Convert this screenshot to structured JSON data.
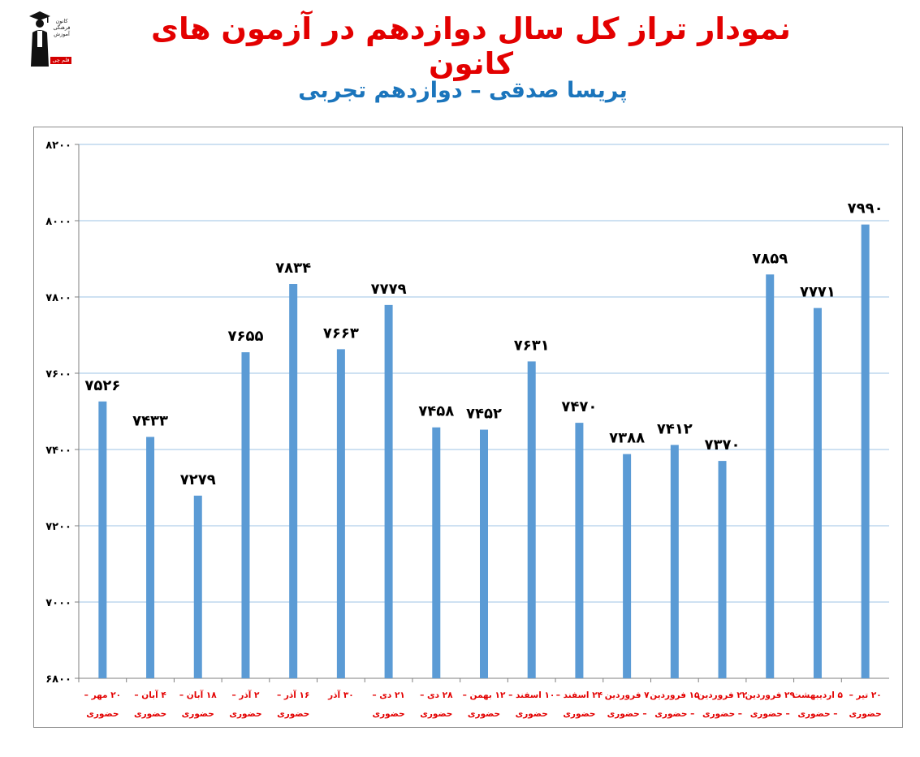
{
  "title": "نمودار تراز کل سال دوازدهم در آزمون های کانون",
  "subtitle": "پریسا صدقی – دوازدهم تجربی",
  "logo": {
    "caption_lines": [
      "کانون",
      "فرهنگی",
      "آموزش"
    ],
    "badge": "قلم چی"
  },
  "colors": {
    "title": "#e30000",
    "subtitle": "#1b75bc",
    "bar": "#5b9bd5",
    "category_label": "#e30000",
    "gridline": "#9dc3e6"
  },
  "chart_data": {
    "type": "bar",
    "title": "نمودار تراز کل سال دوازدهم در آزمون های کانون",
    "subtitle": "پریسا صدقی – دوازدهم تجربی",
    "ylim": [
      6800,
      8200
    ],
    "yticks": [
      6800,
      7000,
      7200,
      7400,
      7600,
      7800,
      8000,
      8200
    ],
    "ytick_labels": [
      "۶۸۰۰",
      "۷۰۰۰",
      "۷۲۰۰",
      "۷۴۰۰",
      "۷۶۰۰",
      "۷۸۰۰",
      "۸۰۰۰",
      "۸۲۰۰"
    ],
    "grid": true,
    "legend": false,
    "categories": [
      [
        "۲۰ مهر –",
        "حضوری"
      ],
      [
        "۴ آبان –",
        "حضوری"
      ],
      [
        "۱۸ آبان –",
        "حضوری"
      ],
      [
        "۲ آذر –",
        "حضوری"
      ],
      [
        "۱۶ آذر –",
        "حضوری"
      ],
      [
        "۳۰ آذر",
        ""
      ],
      [
        "۲۱ دی –",
        "حضوری"
      ],
      [
        "۲۸ دی –",
        "حضوری"
      ],
      [
        "۱۲ بهمن –",
        "حضوری"
      ],
      [
        "۱۰ اسفند –",
        "حضوری"
      ],
      [
        "۲۴ اسفند –",
        "حضوری"
      ],
      [
        "۷ فروردین",
        "– حضوری"
      ],
      [
        "۱۵ فروردین",
        "– حضوری"
      ],
      [
        "۲۲ فروردین",
        "– حضوری"
      ],
      [
        "۲۹ فروردین",
        "– حضوری"
      ],
      [
        "۵ اردیبهشت",
        "– حضوری"
      ],
      [
        "۲۰ تیر –",
        "حضوری"
      ]
    ],
    "values": [
      7526,
      7433,
      7279,
      7655,
      7834,
      7663,
      7779,
      7458,
      7452,
      7631,
      7470,
      7388,
      7412,
      7370,
      7859,
      7771,
      7990
    ],
    "data_labels": [
      "۷۵۲۶",
      "۷۴۳۳",
      "۷۲۷۹",
      "۷۶۵۵",
      "۷۸۳۴",
      "۷۶۶۳",
      "۷۷۷۹",
      "۷۴۵۸",
      "۷۴۵۲",
      "۷۶۳۱",
      "۷۴۷۰",
      "۷۳۸۸",
      "۷۴۱۲",
      "۷۳۷۰",
      "۷۸۵۹",
      "۷۷۷۱",
      "۷۹۹۰"
    ]
  }
}
